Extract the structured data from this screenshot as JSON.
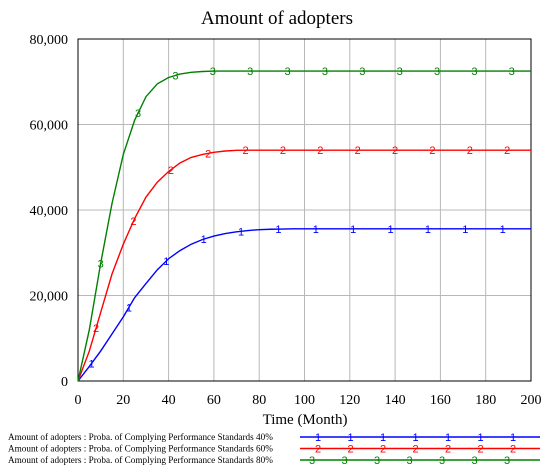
{
  "chart_data": {
    "type": "line",
    "title": "Amount of adopters",
    "xlabel": "Time (Month)",
    "ylabel": "",
    "xlim": [
      0,
      200
    ],
    "ylim": [
      0,
      80000
    ],
    "x_ticks": [
      "0",
      "20",
      "40",
      "60",
      "80",
      "100",
      "120",
      "140",
      "160",
      "180",
      "200"
    ],
    "y_ticks": [
      "0",
      "20,000",
      "40,000",
      "60,000",
      "80,000"
    ],
    "grid": true,
    "legend_position": "bottom",
    "x": [
      0,
      5,
      10,
      15,
      20,
      25,
      30,
      35,
      40,
      45,
      50,
      55,
      60,
      65,
      70,
      75,
      80,
      85,
      90,
      95,
      100,
      110,
      120,
      130,
      140,
      150,
      160,
      170,
      180,
      190,
      200
    ],
    "series": [
      {
        "name": "Amount of adopters : Proba. of Complying Performance Standards 40%",
        "marker": "1",
        "color": "#0000ff",
        "values": [
          0,
          3400,
          7000,
          11000,
          15000,
          19500,
          22800,
          26000,
          28600,
          30500,
          32000,
          33100,
          33900,
          34500,
          34900,
          35200,
          35400,
          35500,
          35550,
          35600,
          35600,
          35600,
          35600,
          35600,
          35600,
          35600,
          35600,
          35600,
          35600,
          35600,
          35600
        ]
      },
      {
        "name": "Amount of adopters : Proba. of Complying Performance Standards 60%",
        "marker": "2",
        "color": "#ff0000",
        "values": [
          0,
          7000,
          16000,
          25000,
          32000,
          38000,
          43000,
          46500,
          49000,
          51000,
          52300,
          53000,
          53500,
          53800,
          53950,
          54000,
          54000,
          54000,
          54000,
          54000,
          54000,
          54000,
          54000,
          54000,
          54000,
          54000,
          54000,
          54000,
          54000,
          54000,
          54000
        ]
      },
      {
        "name": "Amount of adopters : Proba. of Complying Performance Standards 80%",
        "marker": "3",
        "color": "#008000",
        "values": [
          0,
          12000,
          27500,
          41500,
          53000,
          61000,
          66500,
          69500,
          71000,
          71800,
          72200,
          72400,
          72500,
          72500,
          72500,
          72500,
          72500,
          72500,
          72500,
          72500,
          72500,
          72500,
          72500,
          72500,
          72500,
          72500,
          72500,
          72500,
          72500,
          72500,
          72500
        ]
      }
    ]
  }
}
